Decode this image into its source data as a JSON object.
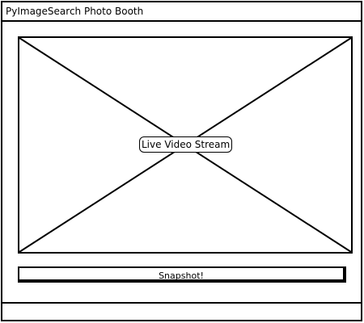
{
  "window": {
    "title": "PyImageSearch Photo Booth"
  },
  "video": {
    "placeholder_label": "Live Video Stream"
  },
  "actions": {
    "snapshot_label": "Snapshot!"
  }
}
